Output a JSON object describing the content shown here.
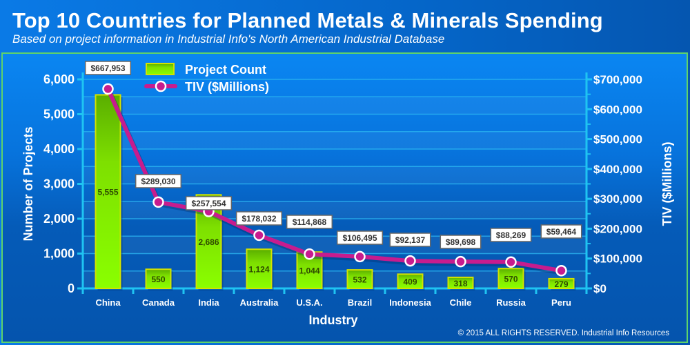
{
  "title": "Top 10 Countries for Planned Metals & Minerals Spending",
  "subtitle": "Based on project information in Industrial Info's North American Industrial Database",
  "copyright": "© 2015 ALL RIGHTS RESERVED. Industrial Info Resources",
  "colors": {
    "bar_fill": "#84f400",
    "bar_border": "#d4e200",
    "line": "#c71c8e",
    "axis": "#1fc4f2",
    "grid": "#2ab4f0"
  },
  "chart_data": {
    "type": "bar",
    "title": "Top 10 Countries for Planned Metals & Minerals Spending",
    "subtitle": "Based on project information in Industrial Info's North American Industrial Database",
    "xlabel": "Industry",
    "ylabel": "Number of Projects",
    "y2label": "TIV ($Millions)",
    "categories": [
      "China",
      "Canada",
      "India",
      "Australia",
      "U.S.A.",
      "Brazil",
      "Indonesia",
      "Chile",
      "Russia",
      "Peru"
    ],
    "series": [
      {
        "name": "Project Count",
        "type": "bar",
        "axis": "left",
        "values": [
          5555,
          550,
          2686,
          1124,
          1044,
          532,
          409,
          318,
          570,
          279
        ],
        "labels": [
          "5,555",
          "550",
          "2,686",
          "1,124",
          "1,044",
          "532",
          "409",
          "318",
          "570",
          "279"
        ]
      },
      {
        "name": "TIV ($Millions)",
        "type": "line",
        "axis": "right",
        "values": [
          667953,
          289030,
          257554,
          178032,
          114868,
          106495,
          92137,
          89698,
          88269,
          59464
        ],
        "labels": [
          "$667,953",
          "$289,030",
          "$257,554",
          "$178,032",
          "$114,868",
          "$106,495",
          "$92,137",
          "$89,698",
          "$88,269",
          "$59,464"
        ]
      }
    ],
    "ylim": [
      0,
      6000
    ],
    "y2lim": [
      0,
      700000
    ],
    "yticks": [
      "0",
      "1,000",
      "2,000",
      "3,000",
      "4,000",
      "5,000",
      "6,000"
    ],
    "y2ticks": [
      "$0",
      "$100,000",
      "$200,000",
      "$300,000",
      "$400,000",
      "$500,000",
      "$600,000",
      "$700,000"
    ],
    "grid": true,
    "legend": {
      "position": "top-left",
      "entries": [
        "Project Count",
        "TIV ($Millions)"
      ]
    }
  }
}
